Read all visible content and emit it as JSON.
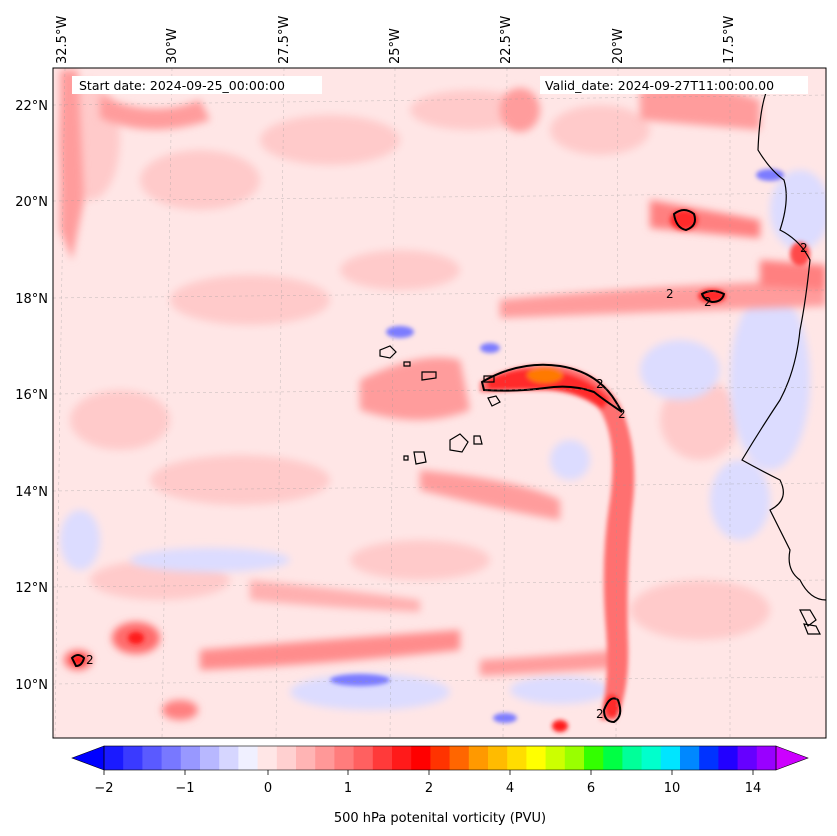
{
  "map": {
    "start_label": "Start date: 2024-09-25_00:00:00",
    "valid_label": "Valid_date: 2024-09-27T11:00:00.00",
    "lon_labels": [
      "32.5°W",
      "30°W",
      "27.5°W",
      "25°W",
      "22.5°W",
      "20°W",
      "17.5°W"
    ],
    "lat_labels": [
      "22°N",
      "20°N",
      "18°N",
      "16°N",
      "14°N",
      "12°N",
      "10°N"
    ],
    "contour_value_label": "2",
    "colorbar": {
      "label": "500 hPa potenital vorticity (PVU)",
      "ticks": [
        "−2",
        "−1",
        "0",
        "1",
        "2",
        "4",
        "6",
        "10",
        "14"
      ],
      "colors": [
        "#1a1aff",
        "#3a3aff",
        "#5a5aff",
        "#7878ff",
        "#9898ff",
        "#b8b8ff",
        "#d6d6ff",
        "#f0f0ff",
        "#ffe6e6",
        "#ffd0d0",
        "#ffb4b4",
        "#ff9898",
        "#ff7c7c",
        "#ff6060",
        "#ff3a3a",
        "#ff1a1a",
        "#ff0000",
        "#ff3300",
        "#ff6600",
        "#ff9900",
        "#ffbb00",
        "#ffdd00",
        "#ffff00",
        "#ccff00",
        "#99ff00",
        "#33ff00",
        "#00ff44",
        "#00ff99",
        "#00ffcc",
        "#00e5ff",
        "#0088ff",
        "#0033ff",
        "#2200ff",
        "#6600ff",
        "#9900ff"
      ]
    },
    "palette": {
      "blue_dark": "#5a5aff",
      "blue_light": "#d0d0ff",
      "pink_base": "#ffe4e4",
      "pink_mid": "#ffb0b0",
      "red": "#ff4a4a",
      "red_dark": "#ff1a1a",
      "orange": "#ff8800",
      "coast": "#000000"
    }
  }
}
